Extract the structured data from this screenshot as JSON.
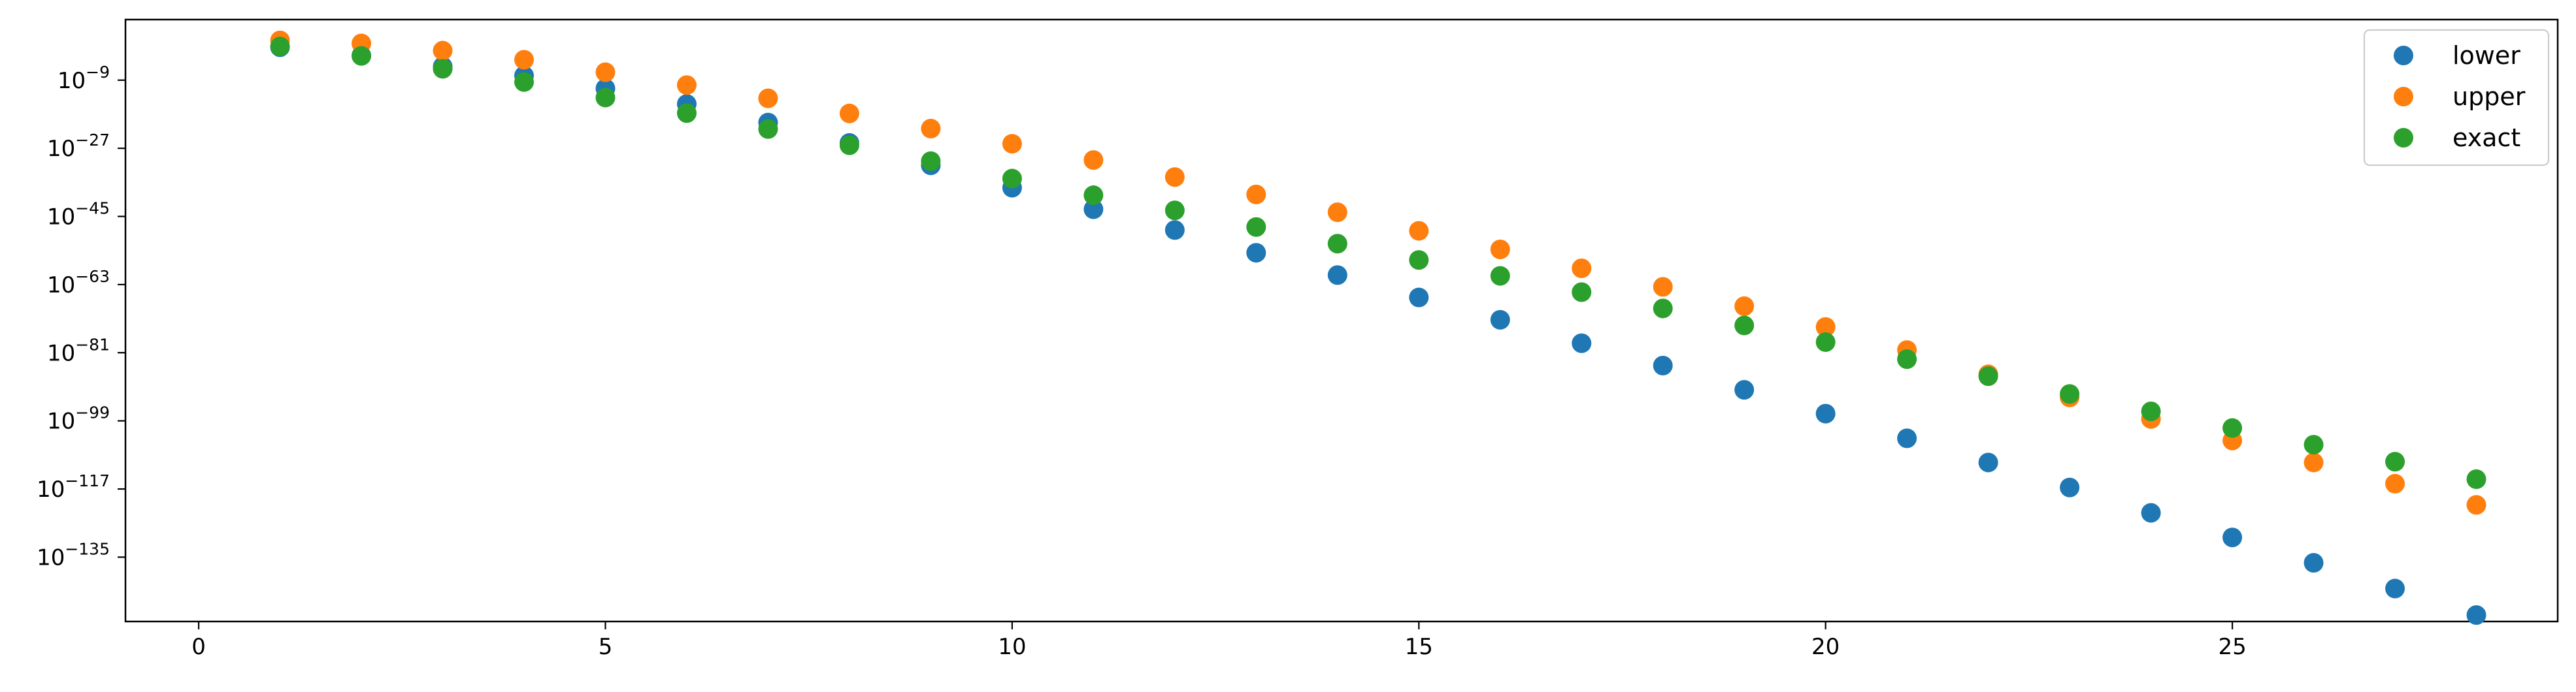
{
  "chart_data": {
    "type": "scatter",
    "title": "",
    "xlabel": "",
    "ylabel": "",
    "xlim": [
      -0.9,
      29.0
    ],
    "ylim_exponent": [
      -152,
      7
    ],
    "yscale": "log",
    "grid": false,
    "legend_position": "top-right",
    "x_ticks": [
      0,
      5,
      10,
      15,
      20,
      25
    ],
    "x_tick_labels": [
      "0",
      "5",
      "10",
      "15",
      "20",
      "25"
    ],
    "y_ticks_exponent": [
      -9,
      -27,
      -45,
      -63,
      -81,
      -99,
      -117,
      -135
    ],
    "y_tick_labels": [
      {
        "base": "10",
        "exp": "−9"
      },
      {
        "base": "10",
        "exp": "−27"
      },
      {
        "base": "10",
        "exp": "−45"
      },
      {
        "base": "10",
        "exp": "−63"
      },
      {
        "base": "10",
        "exp": "−81"
      },
      {
        "base": "10",
        "exp": "−99"
      },
      {
        "base": "10",
        "exp": "−117"
      },
      {
        "base": "10",
        "exp": "−135"
      }
    ],
    "x": [
      1,
      2,
      3,
      4,
      5,
      6,
      7,
      8,
      9,
      10,
      11,
      12,
      13,
      14,
      15,
      16,
      17,
      18,
      19,
      20,
      21,
      22,
      23,
      24,
      25,
      26,
      27,
      28
    ],
    "series": [
      {
        "name": "lower",
        "color": "#1f77b4",
        "log10_values": [
          -0.3,
          -2.5,
          -5.4,
          -7.8,
          -11.2,
          -15.3,
          -20.2,
          -25.6,
          -31.5,
          -37.4,
          -43.1,
          -48.6,
          -54.6,
          -60.5,
          -66.4,
          -72.3,
          -78.5,
          -84.4,
          -90.8,
          -97.1,
          -103.6,
          -110.0,
          -116.6,
          -123.3,
          -129.8,
          -136.5,
          -143.3,
          -150.3
        ]
      },
      {
        "name": "upper",
        "color": "#ff7f0e",
        "log10_values": [
          1.5,
          0.7,
          -1.2,
          -3.6,
          -6.9,
          -10.3,
          -13.8,
          -17.8,
          -21.8,
          -25.8,
          -30.1,
          -34.6,
          -39.2,
          -43.9,
          -48.8,
          -53.7,
          -58.7,
          -63.6,
          -68.7,
          -74.2,
          -80.3,
          -86.7,
          -92.8,
          -98.5,
          -104.2,
          -110.0,
          -115.6,
          -121.2
        ]
      },
      {
        "name": "exact",
        "color": "#2ca02c",
        "log10_values": [
          -0.1,
          -2.6,
          -6.0,
          -9.5,
          -13.6,
          -17.7,
          -21.9,
          -26.2,
          -30.4,
          -35.0,
          -39.4,
          -43.4,
          -47.8,
          -52.2,
          -56.5,
          -60.7,
          -65.0,
          -69.3,
          -73.8,
          -78.2,
          -82.7,
          -87.2,
          -91.9,
          -96.5,
          -100.9,
          -105.3,
          -109.8,
          -114.4
        ]
      }
    ]
  }
}
